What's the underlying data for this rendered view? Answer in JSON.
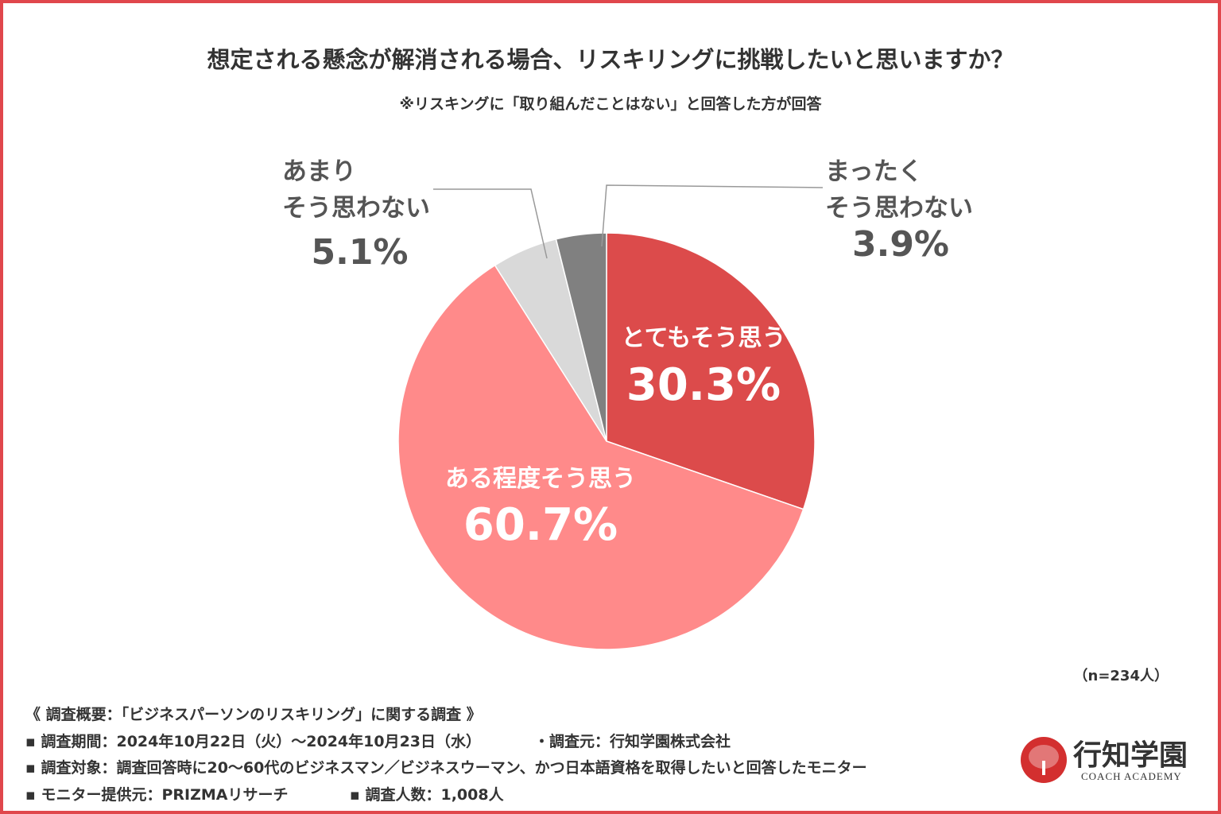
{
  "title": "想定される懸念が解消される場合、リスキリングに挑戦したいと思いますか？",
  "subtitle": "※リスキングに「取り組んだことはない」と回答した方が回答",
  "sample_size": "（n=234人）",
  "chart_data": {
    "type": "pie",
    "title": "想定される懸念が解消される場合、リスキリングに挑戦したいと思いますか？",
    "start": "top, clockwise",
    "slices": [
      {
        "label": "とてもそう思う",
        "value": 30.3,
        "display": "30.3%",
        "color": "#dc4b4b"
      },
      {
        "label": "ある程度そう思う",
        "value": 60.7,
        "display": "60.7%",
        "color": "#ff8a8a"
      },
      {
        "label_lines": [
          "あまり",
          "そう思わない"
        ],
        "value": 5.1,
        "display": "5.1%",
        "color": "#d9d9d9"
      },
      {
        "label_lines": [
          "まったく",
          "そう思わない"
        ],
        "value": 3.9,
        "display": "3.9%",
        "color": "#808080"
      }
    ]
  },
  "footer": {
    "heading": "《 調査概要：「ビジネスパーソンのリスキリング」に関する調査 》",
    "period": "▪ 調査期間：2024年10月22日（火）～2024年10月23日（水）",
    "source": "・調査元：行知学園株式会社",
    "target": "▪ 調査対象：調査回答時に20～60代のビジネスマン／ビジネスウーマン、かつ日本語資格を取得したいと回答したモニター",
    "provider": "▪ モニター提供元：PRIZMAリサーチ",
    "count": "▪ 調査人数：1,008人"
  },
  "logo": {
    "name": "行知学園",
    "sub": "COACH ACADEMY"
  },
  "border_color": "#e0474c"
}
